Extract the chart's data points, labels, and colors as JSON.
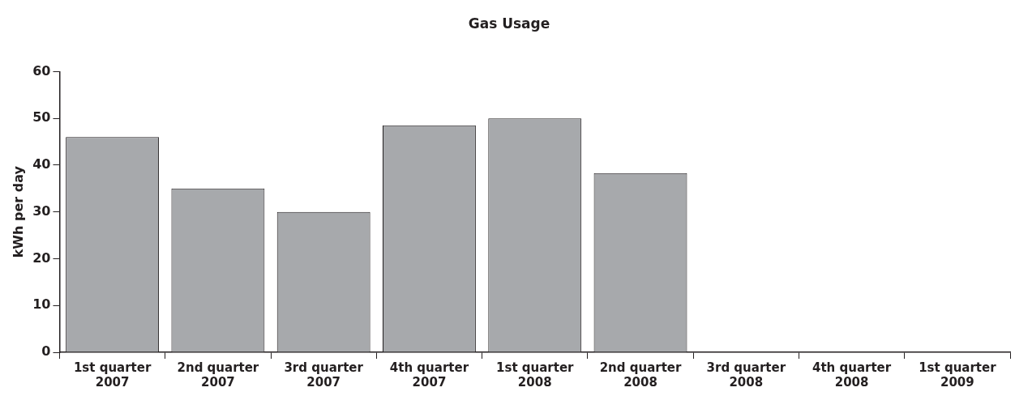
{
  "chart_data": {
    "type": "bar",
    "title": "Gas Usage",
    "ylabel": "kWh per day",
    "categories": [
      "1st quarter 2007",
      "2nd quarter 2007",
      "3rd quarter 2007",
      "4th quarter 2007",
      "1st quarter 2008",
      "2nd quarter 2008",
      "3rd quarter 2008",
      "4th quarter 2008",
      "1st quarter 2009"
    ],
    "values": [
      46,
      35,
      30,
      48.5,
      50,
      38.3,
      null,
      null,
      null
    ],
    "color": "#a7a9ac",
    "ylim": [
      0,
      60
    ],
    "yticks": [
      0,
      10,
      20,
      30,
      40,
      50,
      60
    ],
    "grid": false,
    "legend": false
  }
}
